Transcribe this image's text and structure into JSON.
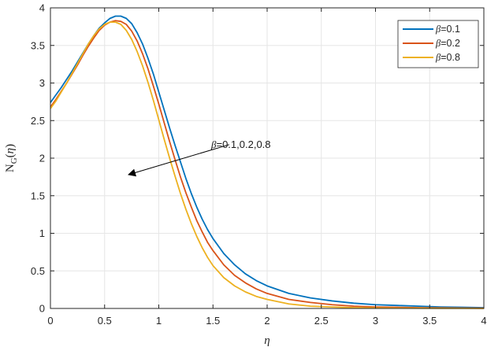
{
  "chart_data": {
    "type": "line",
    "xlabel": "η",
    "ylabel": {
      "base": "N",
      "sub": "G",
      "open": "(",
      "var": "η",
      "close": ")"
    },
    "xlim": [
      0,
      4
    ],
    "ylim": [
      0,
      4
    ],
    "xticks": [
      0,
      0.5,
      1,
      1.5,
      2,
      2.5,
      3,
      3.5,
      4
    ],
    "xtick_labels": [
      "0",
      "0.5",
      "1",
      "1.5",
      "2",
      "2.5",
      "3",
      "3.5",
      "4"
    ],
    "yticks": [
      0,
      0.5,
      1,
      1.5,
      2,
      2.5,
      3,
      3.5,
      4
    ],
    "ytick_labels": [
      "0",
      "0.5",
      "1",
      "1.5",
      "2",
      "2.5",
      "3",
      "3.5",
      "4"
    ],
    "grid": true,
    "legend_position": "top-right",
    "x": [
      0,
      0.05,
      0.1,
      0.15,
      0.2,
      0.25,
      0.3,
      0.35,
      0.4,
      0.45,
      0.5,
      0.55,
      0.6,
      0.65,
      0.7,
      0.75,
      0.8,
      0.85,
      0.9,
      0.95,
      1.0,
      1.05,
      1.1,
      1.15,
      1.2,
      1.25,
      1.3,
      1.35,
      1.4,
      1.45,
      1.5,
      1.6,
      1.7,
      1.8,
      1.9,
      2.0,
      2.2,
      2.4,
      2.6,
      2.8,
      3.0,
      3.2,
      3.4,
      3.6,
      3.8,
      4.0
    ],
    "series": [
      {
        "name_symbol": "β",
        "name_value": "=0.1",
        "color": "#0072BD",
        "values": [
          2.74,
          2.84,
          2.94,
          3.05,
          3.16,
          3.28,
          3.4,
          3.52,
          3.63,
          3.73,
          3.8,
          3.86,
          3.89,
          3.89,
          3.86,
          3.79,
          3.67,
          3.52,
          3.33,
          3.12,
          2.88,
          2.64,
          2.4,
          2.17,
          1.95,
          1.73,
          1.53,
          1.35,
          1.19,
          1.05,
          0.93,
          0.73,
          0.58,
          0.46,
          0.37,
          0.3,
          0.2,
          0.14,
          0.1,
          0.07,
          0.05,
          0.04,
          0.03,
          0.02,
          0.015,
          0.01
        ]
      },
      {
        "name_symbol": "β",
        "name_value": "=0.2",
        "color": "#D95319",
        "values": [
          2.68,
          2.78,
          2.89,
          3.0,
          3.12,
          3.24,
          3.37,
          3.49,
          3.6,
          3.7,
          3.77,
          3.81,
          3.83,
          3.82,
          3.78,
          3.69,
          3.56,
          3.39,
          3.19,
          2.96,
          2.72,
          2.47,
          2.22,
          1.98,
          1.75,
          1.54,
          1.35,
          1.17,
          1.02,
          0.88,
          0.77,
          0.58,
          0.44,
          0.34,
          0.26,
          0.2,
          0.12,
          0.08,
          0.05,
          0.03,
          0.02,
          0.015,
          0.01,
          0.007,
          0.005,
          0.003
        ]
      },
      {
        "name_symbol": "β",
        "name_value": "=0.8",
        "color": "#EDB120",
        "values": [
          2.66,
          2.76,
          2.88,
          3.0,
          3.13,
          3.26,
          3.39,
          3.52,
          3.63,
          3.72,
          3.78,
          3.81,
          3.81,
          3.78,
          3.7,
          3.58,
          3.42,
          3.23,
          3.01,
          2.77,
          2.51,
          2.25,
          2.0,
          1.76,
          1.53,
          1.32,
          1.13,
          0.96,
          0.81,
          0.68,
          0.57,
          0.41,
          0.3,
          0.22,
          0.16,
          0.12,
          0.06,
          0.03,
          0.02,
          0.01,
          0.006,
          0.004,
          0.003,
          0.002,
          0.001,
          0.0
        ]
      }
    ],
    "annotation": {
      "symbol": "β",
      "text": "=0.1,0.2,0.8",
      "arrow_from": [
        1.65,
        2.18
      ],
      "arrow_to": [
        0.72,
        1.78
      ]
    }
  }
}
